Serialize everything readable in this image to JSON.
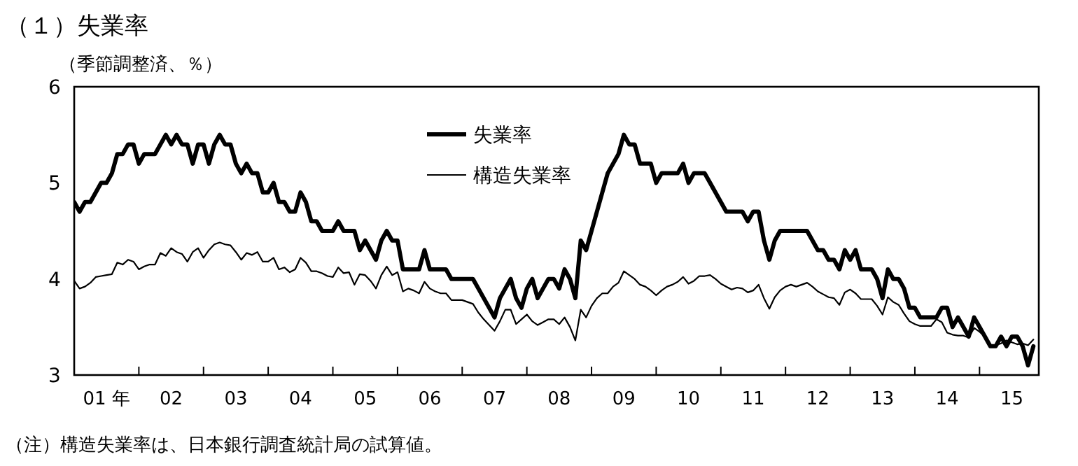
{
  "chart_data": {
    "type": "line",
    "title": "（１）失業率",
    "subtitle": "（季節調整済、％）",
    "annotations": [
      "（注）構造失業率は、日本銀行調査統計局の試算値。"
    ],
    "x": [
      "2001-01",
      "2001-02",
      "2001-03",
      "2001-04",
      "2001-05",
      "2001-06",
      "2001-07",
      "2001-08",
      "2001-09",
      "2001-10",
      "2001-11",
      "2001-12",
      "2002-01",
      "2002-02",
      "2002-03",
      "2002-04",
      "2002-05",
      "2002-06",
      "2002-07",
      "2002-08",
      "2002-09",
      "2002-10",
      "2002-11",
      "2002-12",
      "2003-01",
      "2003-02",
      "2003-03",
      "2003-04",
      "2003-05",
      "2003-06",
      "2003-07",
      "2003-08",
      "2003-09",
      "2003-10",
      "2003-11",
      "2003-12",
      "2004-01",
      "2004-02",
      "2004-03",
      "2004-04",
      "2004-05",
      "2004-06",
      "2004-07",
      "2004-08",
      "2004-09",
      "2004-10",
      "2004-11",
      "2004-12",
      "2005-01",
      "2005-02",
      "2005-03",
      "2005-04",
      "2005-05",
      "2005-06",
      "2005-07",
      "2005-08",
      "2005-09",
      "2005-10",
      "2005-11",
      "2005-12",
      "2006-01",
      "2006-02",
      "2006-03",
      "2006-04",
      "2006-05",
      "2006-06",
      "2006-07",
      "2006-08",
      "2006-09",
      "2006-10",
      "2006-11",
      "2006-12",
      "2007-01",
      "2007-02",
      "2007-03",
      "2007-04",
      "2007-05",
      "2007-06",
      "2007-07",
      "2007-08",
      "2007-09",
      "2007-10",
      "2007-11",
      "2007-12",
      "2008-01",
      "2008-02",
      "2008-03",
      "2008-04",
      "2008-05",
      "2008-06",
      "2008-07",
      "2008-08",
      "2008-09",
      "2008-10",
      "2008-11",
      "2008-12",
      "2009-01",
      "2009-02",
      "2009-03",
      "2009-04",
      "2009-05",
      "2009-06",
      "2009-07",
      "2009-08",
      "2009-09",
      "2009-10",
      "2009-11",
      "2009-12",
      "2010-01",
      "2010-02",
      "2010-03",
      "2010-04",
      "2010-05",
      "2010-06",
      "2010-07",
      "2010-08",
      "2010-09",
      "2010-10",
      "2010-11",
      "2010-12",
      "2011-01",
      "2011-02",
      "2011-03",
      "2011-04",
      "2011-05",
      "2011-06",
      "2011-07",
      "2011-08",
      "2011-09",
      "2011-10",
      "2011-11",
      "2011-12",
      "2012-01",
      "2012-02",
      "2012-03",
      "2012-04",
      "2012-05",
      "2012-06",
      "2012-07",
      "2012-08",
      "2012-09",
      "2012-10",
      "2012-11",
      "2012-12",
      "2013-01",
      "2013-02",
      "2013-03",
      "2013-04",
      "2013-05",
      "2013-06",
      "2013-07",
      "2013-08",
      "2013-09",
      "2013-10",
      "2013-11",
      "2013-12",
      "2014-01",
      "2014-02",
      "2014-03",
      "2014-04",
      "2014-05",
      "2014-06",
      "2014-07",
      "2014-08",
      "2014-09",
      "2014-10",
      "2014-11",
      "2014-12",
      "2015-01",
      "2015-02",
      "2015-03",
      "2015-04",
      "2015-05",
      "2015-06",
      "2015-07",
      "2015-08",
      "2015-09",
      "2015-10",
      "2015-11"
    ],
    "series": [
      {
        "name": "失業率",
        "color": "#000000",
        "values": [
          4.8,
          4.7,
          4.8,
          4.8,
          4.9,
          5.0,
          5.0,
          5.1,
          5.3,
          5.3,
          5.4,
          5.4,
          5.2,
          5.3,
          5.3,
          5.3,
          5.4,
          5.5,
          5.4,
          5.5,
          5.4,
          5.4,
          5.2,
          5.4,
          5.4,
          5.2,
          5.4,
          5.5,
          5.4,
          5.4,
          5.2,
          5.1,
          5.2,
          5.1,
          5.1,
          4.9,
          4.9,
          5.0,
          4.8,
          4.8,
          4.7,
          4.7,
          4.9,
          4.8,
          4.6,
          4.6,
          4.5,
          4.5,
          4.5,
          4.6,
          4.5,
          4.5,
          4.5,
          4.3,
          4.4,
          4.3,
          4.2,
          4.4,
          4.5,
          4.4,
          4.4,
          4.1,
          4.1,
          4.1,
          4.1,
          4.3,
          4.1,
          4.1,
          4.1,
          4.1,
          4.0,
          4.0,
          4.0,
          4.0,
          4.0,
          3.9,
          3.8,
          3.7,
          3.6,
          3.8,
          3.9,
          4.0,
          3.8,
          3.7,
          3.9,
          4.0,
          3.8,
          3.9,
          4.0,
          4.0,
          3.9,
          4.1,
          4.0,
          3.8,
          4.4,
          4.3,
          4.5,
          4.7,
          4.9,
          5.1,
          5.2,
          5.3,
          5.5,
          5.4,
          5.4,
          5.2,
          5.2,
          5.2,
          5.0,
          5.1,
          5.1,
          5.1,
          5.1,
          5.2,
          5.0,
          5.1,
          5.1,
          5.1,
          5.0,
          4.9,
          4.8,
          4.7,
          4.7,
          4.7,
          4.7,
          4.6,
          4.7,
          4.7,
          4.4,
          4.2,
          4.4,
          4.5,
          4.5,
          4.5,
          4.5,
          4.5,
          4.5,
          4.4,
          4.3,
          4.3,
          4.2,
          4.2,
          4.1,
          4.3,
          4.2,
          4.3,
          4.1,
          4.1,
          4.1,
          4.0,
          3.8,
          4.1,
          4.0,
          4.0,
          3.9,
          3.7,
          3.7,
          3.6,
          3.6,
          3.6,
          3.6,
          3.7,
          3.7,
          3.5,
          3.6,
          3.5,
          3.4,
          3.6,
          3.5,
          3.4,
          3.3,
          3.3,
          3.4,
          3.3,
          3.4,
          3.4,
          3.3,
          3.1,
          3.3
        ]
      },
      {
        "name": "構造失業率",
        "color": "#000000",
        "values": [
          3.98,
          3.9,
          3.92,
          3.96,
          4.02,
          4.03,
          4.04,
          4.05,
          4.17,
          4.15,
          4.2,
          4.18,
          4.1,
          4.13,
          4.15,
          4.15,
          4.27,
          4.24,
          4.32,
          4.28,
          4.26,
          4.18,
          4.28,
          4.32,
          4.22,
          4.3,
          4.36,
          4.38,
          4.36,
          4.35,
          4.28,
          4.2,
          4.27,
          4.25,
          4.28,
          4.18,
          4.18,
          4.22,
          4.1,
          4.12,
          4.07,
          4.1,
          4.22,
          4.17,
          4.08,
          4.08,
          4.06,
          4.03,
          4.02,
          4.12,
          4.06,
          4.07,
          3.94,
          4.05,
          4.04,
          3.98,
          3.9,
          4.04,
          4.13,
          4.04,
          4.07,
          3.87,
          3.9,
          3.88,
          3.85,
          3.97,
          3.9,
          3.87,
          3.85,
          3.85,
          3.78,
          3.78,
          3.78,
          3.76,
          3.74,
          3.65,
          3.58,
          3.52,
          3.46,
          3.56,
          3.68,
          3.68,
          3.53,
          3.58,
          3.63,
          3.56,
          3.52,
          3.55,
          3.58,
          3.58,
          3.53,
          3.6,
          3.5,
          3.36,
          3.68,
          3.6,
          3.72,
          3.8,
          3.85,
          3.85,
          3.92,
          3.96,
          4.08,
          4.04,
          4.0,
          3.94,
          3.92,
          3.88,
          3.83,
          3.88,
          3.92,
          3.94,
          3.97,
          4.02,
          3.95,
          3.98,
          4.03,
          4.03,
          4.04,
          4.0,
          3.95,
          3.92,
          3.89,
          3.91,
          3.9,
          3.86,
          3.88,
          3.94,
          3.8,
          3.69,
          3.81,
          3.88,
          3.92,
          3.94,
          3.92,
          3.94,
          3.96,
          3.92,
          3.87,
          3.84,
          3.81,
          3.8,
          3.73,
          3.86,
          3.89,
          3.85,
          3.79,
          3.79,
          3.79,
          3.72,
          3.63,
          3.81,
          3.76,
          3.73,
          3.64,
          3.56,
          3.53,
          3.51,
          3.51,
          3.51,
          3.58,
          3.55,
          3.44,
          3.42,
          3.41,
          3.41,
          3.39,
          3.49,
          3.45,
          3.4,
          3.31,
          3.31,
          3.33,
          3.36,
          3.34,
          3.32,
          3.33,
          3.31,
          3.37
        ]
      }
    ],
    "xlim": [
      "2001-01",
      "2015-12"
    ],
    "xticks": [
      {
        "value": "2001-07",
        "label": "01 年"
      },
      {
        "value": "2002-01",
        "label": null
      },
      {
        "value": "2002-07",
        "label": "02"
      },
      {
        "value": "2003-01",
        "label": null
      },
      {
        "value": "2003-07",
        "label": "03"
      },
      {
        "value": "2004-01",
        "label": null
      },
      {
        "value": "2004-07",
        "label": "04"
      },
      {
        "value": "2005-01",
        "label": null
      },
      {
        "value": "2005-07",
        "label": "05"
      },
      {
        "value": "2006-01",
        "label": null
      },
      {
        "value": "2006-07",
        "label": "06"
      },
      {
        "value": "2007-01",
        "label": null
      },
      {
        "value": "2007-07",
        "label": "07"
      },
      {
        "value": "2008-01",
        "label": null
      },
      {
        "value": "2008-07",
        "label": "08"
      },
      {
        "value": "2009-01",
        "label": null
      },
      {
        "value": "2009-07",
        "label": "09"
      },
      {
        "value": "2010-01",
        "label": null
      },
      {
        "value": "2010-07",
        "label": "10"
      },
      {
        "value": "2011-01",
        "label": null
      },
      {
        "value": "2011-07",
        "label": "11"
      },
      {
        "value": "2012-01",
        "label": null
      },
      {
        "value": "2012-07",
        "label": "12"
      },
      {
        "value": "2013-01",
        "label": null
      },
      {
        "value": "2013-07",
        "label": "13"
      },
      {
        "value": "2014-01",
        "label": null
      },
      {
        "value": "2014-07",
        "label": "14"
      },
      {
        "value": "2015-01",
        "label": null
      },
      {
        "value": "2015-07",
        "label": "15"
      }
    ],
    "ylim": [
      3,
      6
    ],
    "yticks": [
      3,
      4,
      5,
      6
    ],
    "legend": "top"
  }
}
